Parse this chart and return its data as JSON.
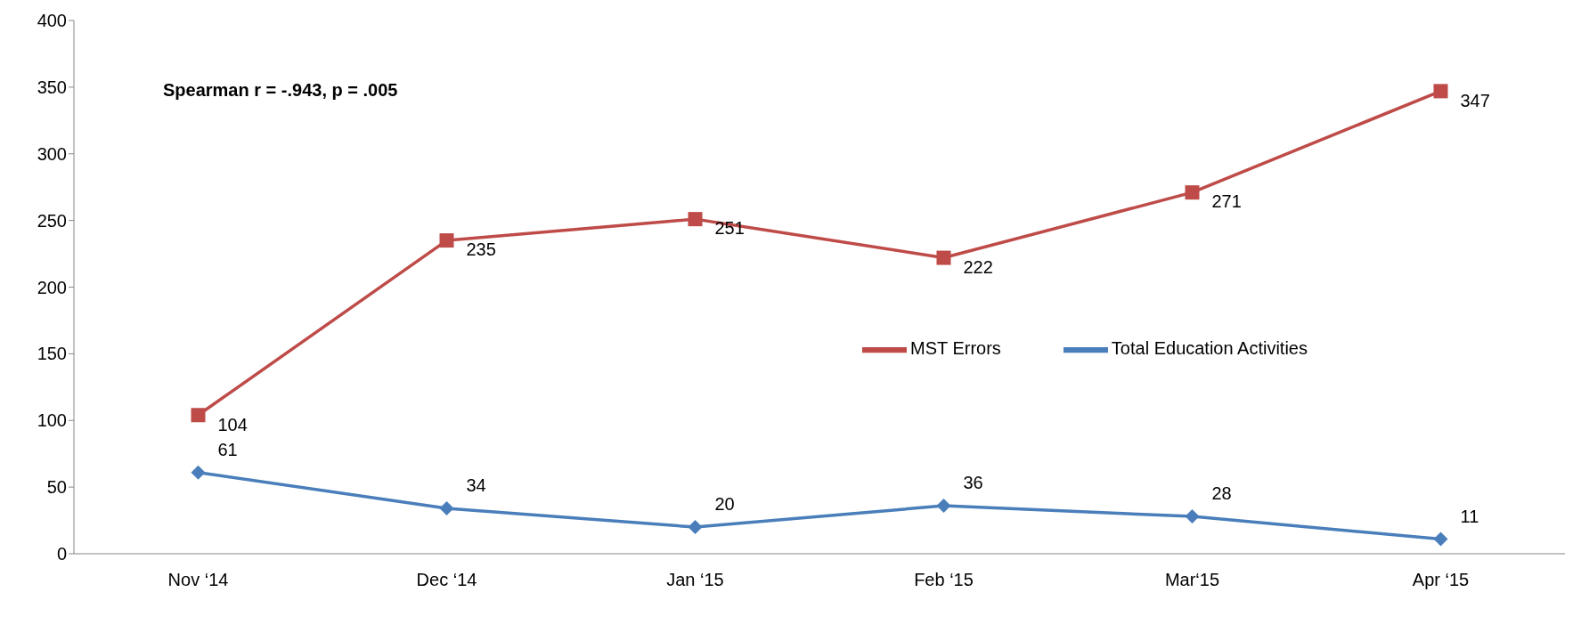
{
  "chart_data": {
    "type": "line",
    "categories": [
      "Nov ‘14",
      "Dec ‘14",
      "Jan ‘15",
      "Feb ‘15",
      "Mar‘15",
      "Apr ‘15"
    ],
    "series": [
      {
        "name": "Total Education Activities",
        "color": "#4a7ebb",
        "values": [
          61,
          34,
          20,
          36,
          28,
          11
        ],
        "marker": "diamond"
      },
      {
        "name": "MST Errors",
        "color": "#be4b48",
        "values": [
          104,
          235,
          251,
          222,
          271,
          347
        ],
        "marker": "square"
      }
    ],
    "ylim": [
      0,
      400
    ],
    "yticks": [
      0,
      50,
      100,
      150,
      200,
      250,
      300,
      350,
      400
    ],
    "grid": false,
    "legend": "right",
    "data_labels": true,
    "annotations": [
      "Spearman r = -.943, p = .005"
    ]
  }
}
